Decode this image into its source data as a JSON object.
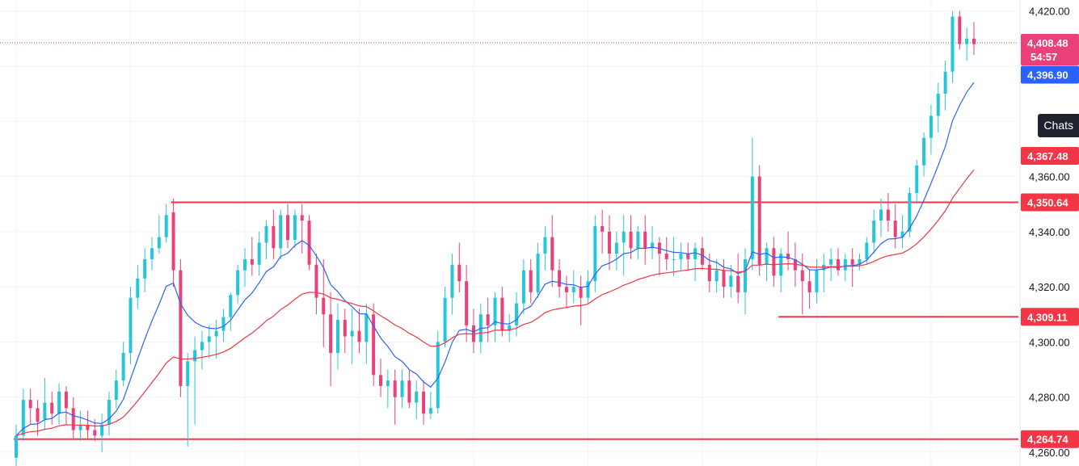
{
  "chart_data": {
    "type": "candlestick",
    "ylim": [
      4255,
      4424
    ],
    "grid": true,
    "colors": {
      "up": "#26c6da",
      "down": "#ec407a",
      "ema_fast": "#2962ff",
      "ema_slow": "#f23645",
      "level": "#f23645",
      "current_price": "#f23645",
      "price_tag": "#ec407a",
      "ema_fast_tag": "#2962ff",
      "grid": "#f0f3fa",
      "axis_text": "#131722"
    },
    "y_ticks": [
      "4,260.00",
      "4,280.00",
      "4,300.00",
      "4,320.00",
      "4,340.00",
      "4,360.00",
      "4,420.00"
    ],
    "price_tag": {
      "value": "4,408.48",
      "countdown": "54:57"
    },
    "ema_fast_tag": {
      "value": "4,396.90"
    },
    "ema_slow_tag": {
      "value": "4,367.48"
    },
    "levels": [
      {
        "value": 4350.64,
        "label": "4,350.64",
        "from_bar": 22
      },
      {
        "value": 4309.11,
        "label": "4,309.11",
        "from_bar": 107
      },
      {
        "value": 4264.74,
        "label": "4,264.74",
        "from_bar": 0
      }
    ],
    "bars": [
      [
        4258,
        4270,
        4255,
        4266
      ],
      [
        4266,
        4283,
        4264,
        4279
      ],
      [
        4279,
        4283,
        4270,
        4276
      ],
      [
        4276,
        4279,
        4266,
        4271
      ],
      [
        4272,
        4287,
        4268,
        4278
      ],
      [
        4278,
        4282,
        4270,
        4274
      ],
      [
        4274,
        4285,
        4270,
        4282
      ],
      [
        4282,
        4284,
        4270,
        4276
      ],
      [
        4276,
        4280,
        4265,
        4268
      ],
      [
        4268,
        4275,
        4264,
        4270
      ],
      [
        4270,
        4275,
        4265,
        4268
      ],
      [
        4268,
        4272,
        4264,
        4266
      ],
      [
        4266,
        4274,
        4260,
        4270
      ],
      [
        4270,
        4282,
        4266,
        4279
      ],
      [
        4279,
        4290,
        4276,
        4286
      ],
      [
        4286,
        4300,
        4284,
        4296
      ],
      [
        4296,
        4320,
        4292,
        4316
      ],
      [
        4316,
        4328,
        4312,
        4323
      ],
      [
        4323,
        4334,
        4318,
        4330
      ],
      [
        4330,
        4338,
        4326,
        4334
      ],
      [
        4334,
        4346,
        4332,
        4338
      ],
      [
        4338,
        4350,
        4336,
        4346
      ],
      [
        4347,
        4352,
        4320,
        4326
      ],
      [
        4326,
        4330,
        4280,
        4284
      ],
      [
        4284,
        4296,
        4262,
        4293
      ],
      [
        4293,
        4302,
        4270,
        4297
      ],
      [
        4297,
        4304,
        4290,
        4300
      ],
      [
        4300,
        4306,
        4294,
        4302
      ],
      [
        4302,
        4308,
        4294,
        4304
      ],
      [
        4304,
        4312,
        4300,
        4309
      ],
      [
        4309,
        4318,
        4304,
        4317
      ],
      [
        4317,
        4328,
        4314,
        4326
      ],
      [
        4326,
        4334,
        4320,
        4330
      ],
      [
        4330,
        4338,
        4324,
        4328
      ],
      [
        4328,
        4340,
        4324,
        4336
      ],
      [
        4336,
        4344,
        4330,
        4342
      ],
      [
        4342,
        4348,
        4330,
        4334
      ],
      [
        4334,
        4348,
        4330,
        4346
      ],
      [
        4346,
        4350,
        4334,
        4337
      ],
      [
        4337,
        4348,
        4334,
        4346
      ],
      [
        4346,
        4350,
        4332,
        4344
      ],
      [
        4344,
        4346,
        4326,
        4328
      ],
      [
        4328,
        4332,
        4310,
        4316
      ],
      [
        4316,
        4330,
        4298,
        4310
      ],
      [
        4310,
        4318,
        4284,
        4296
      ],
      [
        4296,
        4314,
        4290,
        4308
      ],
      [
        4308,
        4312,
        4296,
        4302
      ],
      [
        4302,
        4312,
        4292,
        4304
      ],
      [
        4304,
        4312,
        4296,
        4300
      ],
      [
        4300,
        4314,
        4292,
        4310
      ],
      [
        4310,
        4314,
        4284,
        4288
      ],
      [
        4288,
        4294,
        4280,
        4284
      ],
      [
        4284,
        4290,
        4276,
        4286
      ],
      [
        4286,
        4290,
        4270,
        4280
      ],
      [
        4280,
        4290,
        4276,
        4286
      ],
      [
        4286,
        4290,
        4276,
        4278
      ],
      [
        4278,
        4286,
        4272,
        4282
      ],
      [
        4282,
        4286,
        4270,
        4274
      ],
      [
        4274,
        4282,
        4272,
        4276
      ],
      [
        4276,
        4304,
        4274,
        4300
      ],
      [
        4300,
        4320,
        4298,
        4316
      ],
      [
        4316,
        4332,
        4310,
        4328
      ],
      [
        4328,
        4336,
        4318,
        4322
      ],
      [
        4322,
        4328,
        4300,
        4306
      ],
      [
        4306,
        4312,
        4296,
        4300
      ],
      [
        4300,
        4314,
        4296,
        4310
      ],
      [
        4310,
        4316,
        4300,
        4306
      ],
      [
        4306,
        4318,
        4300,
        4316
      ],
      [
        4316,
        4320,
        4302,
        4304
      ],
      [
        4304,
        4310,
        4300,
        4306
      ],
      [
        4306,
        4318,
        4302,
        4314
      ],
      [
        4314,
        4330,
        4310,
        4326
      ],
      [
        4326,
        4330,
        4314,
        4318
      ],
      [
        4318,
        4336,
        4316,
        4332
      ],
      [
        4332,
        4342,
        4326,
        4338
      ],
      [
        4338,
        4346,
        4320,
        4326
      ],
      [
        4326,
        4330,
        4316,
        4320
      ],
      [
        4320,
        4324,
        4312,
        4318
      ],
      [
        4318,
        4326,
        4314,
        4320
      ],
      [
        4320,
        4324,
        4306,
        4316
      ],
      [
        4316,
        4326,
        4314,
        4322
      ],
      [
        4322,
        4346,
        4318,
        4342
      ],
      [
        4342,
        4348,
        4332,
        4340
      ],
      [
        4340,
        4346,
        4326,
        4332
      ],
      [
        4332,
        4340,
        4326,
        4336
      ],
      [
        4336,
        4346,
        4324,
        4340
      ],
      [
        4340,
        4346,
        4330,
        4334
      ],
      [
        4334,
        4342,
        4330,
        4340
      ],
      [
        4340,
        4346,
        4328,
        4334
      ],
      [
        4334,
        4342,
        4330,
        4336
      ],
      [
        4336,
        4338,
        4324,
        4332
      ],
      [
        4332,
        4338,
        4326,
        4330
      ],
      [
        4330,
        4338,
        4324,
        4330
      ],
      [
        4330,
        4336,
        4326,
        4332
      ],
      [
        4332,
        4336,
        4326,
        4330
      ],
      [
        4330,
        4336,
        4322,
        4334
      ],
      [
        4334,
        4338,
        4326,
        4328
      ],
      [
        4328,
        4332,
        4318,
        4322
      ],
      [
        4322,
        4330,
        4318,
        4326
      ],
      [
        4326,
        4330,
        4316,
        4320
      ],
      [
        4320,
        4328,
        4316,
        4324
      ],
      [
        4324,
        4332,
        4314,
        4318
      ],
      [
        4318,
        4334,
        4310,
        4330
      ],
      [
        4330,
        4374,
        4326,
        4360
      ],
      [
        4360,
        4364,
        4324,
        4328
      ],
      [
        4328,
        4336,
        4322,
        4334
      ],
      [
        4334,
        4338,
        4320,
        4324
      ],
      [
        4324,
        4334,
        4318,
        4332
      ],
      [
        4332,
        4340,
        4326,
        4330
      ],
      [
        4330,
        4336,
        4320,
        4326
      ],
      [
        4326,
        4332,
        4310,
        4322
      ],
      [
        4322,
        4326,
        4312,
        4318
      ],
      [
        4318,
        4330,
        4314,
        4326
      ],
      [
        4326,
        4332,
        4318,
        4328
      ],
      [
        4328,
        4334,
        4322,
        4330
      ],
      [
        4330,
        4334,
        4324,
        4326
      ],
      [
        4326,
        4332,
        4322,
        4330
      ],
      [
        4330,
        4334,
        4320,
        4328
      ],
      [
        4328,
        4332,
        4326,
        4330
      ],
      [
        4330,
        4338,
        4328,
        4336
      ],
      [
        4336,
        4348,
        4332,
        4344
      ],
      [
        4344,
        4352,
        4338,
        4348
      ],
      [
        4348,
        4354,
        4340,
        4344
      ],
      [
        4344,
        4350,
        4334,
        4338
      ],
      [
        4338,
        4346,
        4334,
        4340
      ],
      [
        4340,
        4356,
        4338,
        4354
      ],
      [
        4354,
        4366,
        4350,
        4364
      ],
      [
        4364,
        4376,
        4360,
        4374
      ],
      [
        4374,
        4386,
        4368,
        4382
      ],
      [
        4382,
        4394,
        4376,
        4390
      ],
      [
        4390,
        4402,
        4384,
        4398
      ],
      [
        4398,
        4420,
        4394,
        4418
      ],
      [
        4418,
        4420,
        4406,
        4408
      ],
      [
        4408,
        4414,
        4402,
        4410
      ],
      [
        4410,
        4416,
        4404,
        4408
      ]
    ]
  },
  "ui": {
    "chats_label": "Chats"
  }
}
